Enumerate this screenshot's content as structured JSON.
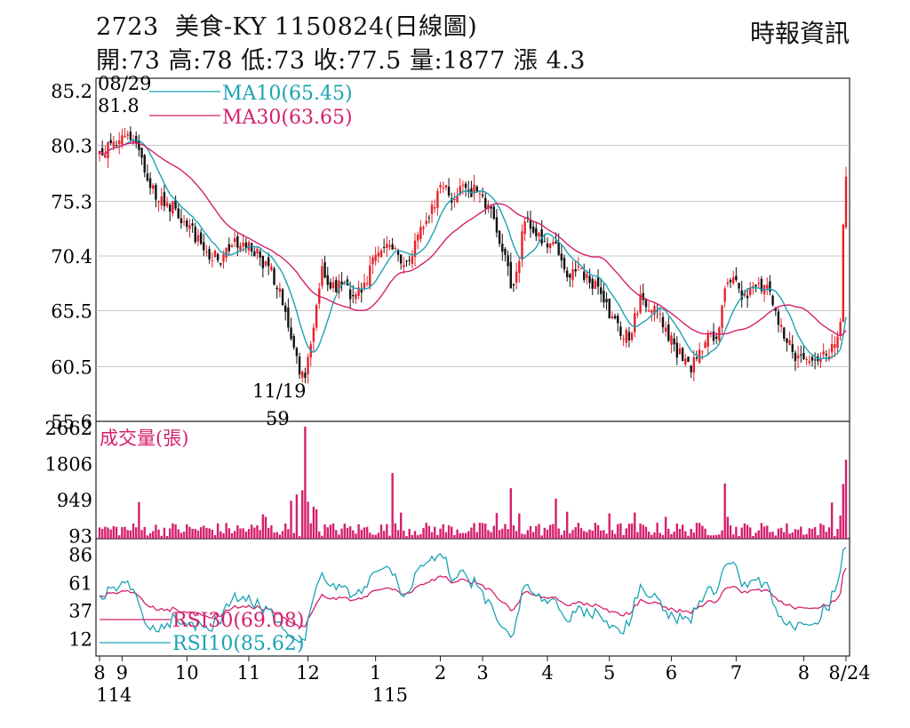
{
  "header": {
    "code": "2723",
    "name": "美食-KY",
    "date_label": "1150824(日線圖)",
    "open_label": "開:73",
    "high_label": "高:78",
    "low_label": "低:73",
    "close_label": "收:77.5",
    "volume_label": "量:1877",
    "change_label": "漲 4.3"
  },
  "source": "時報資訊",
  "colors": {
    "up": "#e8202a",
    "down": "#111111",
    "ma10": "#1aa3b5",
    "ma30": "#d4206e",
    "volume": "#d4206e",
    "rsi10": "#1aa3b5",
    "rsi30": "#d4206e",
    "grid": "#bbbbbb"
  },
  "chart_data": [
    {
      "type": "candlestick",
      "ylim": [
        55.6,
        85.2
      ],
      "yticks": [
        "85.2",
        "80.3",
        "75.3",
        "70.4",
        "65.5",
        "60.5",
        "55.6"
      ],
      "legend": {
        "ma10_label": "MA10(65.45)",
        "ma30_label": "MA30(63.65)"
      },
      "annotations": {
        "high_date": "08/29",
        "high_value": "81.8",
        "low_date": "11/19",
        "low_value": "59"
      },
      "close_anchors": [
        {
          "t": 0,
          "v": 79.8
        },
        {
          "t": 4,
          "v": 80.5
        },
        {
          "t": 8,
          "v": 81.2
        },
        {
          "t": 12,
          "v": 80.8
        },
        {
          "t": 15,
          "v": 79.2
        },
        {
          "t": 18,
          "v": 76.5
        },
        {
          "t": 24,
          "v": 75.2
        },
        {
          "t": 30,
          "v": 73.5
        },
        {
          "t": 36,
          "v": 71.5
        },
        {
          "t": 42,
          "v": 70.0
        },
        {
          "t": 48,
          "v": 72.0
        },
        {
          "t": 54,
          "v": 70.8
        },
        {
          "t": 60,
          "v": 69.5
        },
        {
          "t": 64,
          "v": 67.5
        },
        {
          "t": 67,
          "v": 64.0
        },
        {
          "t": 69,
          "v": 62.2
        },
        {
          "t": 71,
          "v": 59.8
        },
        {
          "t": 73,
          "v": 59.5
        },
        {
          "t": 75,
          "v": 62.5
        },
        {
          "t": 77,
          "v": 66.0
        },
        {
          "t": 79,
          "v": 69.5
        },
        {
          "t": 82,
          "v": 67.5
        },
        {
          "t": 86,
          "v": 67.8
        },
        {
          "t": 90,
          "v": 66.8
        },
        {
          "t": 94,
          "v": 68.0
        },
        {
          "t": 98,
          "v": 70.5
        },
        {
          "t": 102,
          "v": 71.5
        },
        {
          "t": 106,
          "v": 70.5
        },
        {
          "t": 110,
          "v": 70.0
        },
        {
          "t": 114,
          "v": 73.0
        },
        {
          "t": 118,
          "v": 75.0
        },
        {
          "t": 122,
          "v": 76.5
        },
        {
          "t": 126,
          "v": 75.5
        },
        {
          "t": 130,
          "v": 76.5
        },
        {
          "t": 134,
          "v": 76.2
        },
        {
          "t": 138,
          "v": 75.0
        },
        {
          "t": 141,
          "v": 72.5
        },
        {
          "t": 144,
          "v": 70.5
        },
        {
          "t": 146,
          "v": 67.5
        },
        {
          "t": 148,
          "v": 69.0
        },
        {
          "t": 151,
          "v": 73.5
        },
        {
          "t": 154,
          "v": 72.5
        },
        {
          "t": 157,
          "v": 71.5
        },
        {
          "t": 160,
          "v": 71.5
        },
        {
          "t": 163,
          "v": 70.5
        },
        {
          "t": 166,
          "v": 68.5
        },
        {
          "t": 170,
          "v": 69.5
        },
        {
          "t": 174,
          "v": 68.0
        },
        {
          "t": 178,
          "v": 67.0
        },
        {
          "t": 182,
          "v": 65.0
        },
        {
          "t": 186,
          "v": 63.0
        },
        {
          "t": 189,
          "v": 63.5
        },
        {
          "t": 192,
          "v": 67.0
        },
        {
          "t": 195,
          "v": 65.5
        },
        {
          "t": 198,
          "v": 65.5
        },
        {
          "t": 201,
          "v": 64.0
        },
        {
          "t": 204,
          "v": 62.5
        },
        {
          "t": 207,
          "v": 61.0
        },
        {
          "t": 210,
          "v": 60.0
        },
        {
          "t": 213,
          "v": 62.0
        },
        {
          "t": 216,
          "v": 63.5
        },
        {
          "t": 219,
          "v": 63.0
        },
        {
          "t": 222,
          "v": 67.5
        },
        {
          "t": 225,
          "v": 68.5
        },
        {
          "t": 228,
          "v": 66.5
        },
        {
          "t": 231,
          "v": 67.5
        },
        {
          "t": 234,
          "v": 68.0
        },
        {
          "t": 237,
          "v": 67.8
        },
        {
          "t": 240,
          "v": 65.5
        },
        {
          "t": 243,
          "v": 63.0
        },
        {
          "t": 246,
          "v": 61.8
        },
        {
          "t": 249,
          "v": 61.5
        },
        {
          "t": 252,
          "v": 61.0
        },
        {
          "t": 255,
          "v": 61.0
        },
        {
          "t": 258,
          "v": 61.5
        },
        {
          "t": 261,
          "v": 62.5
        },
        {
          "t": 263,
          "v": 64.5
        },
        {
          "t": 264,
          "v": 73.2
        },
        {
          "t": 265,
          "v": 77.5
        }
      ],
      "x_ticks": [
        {
          "label": "8",
          "t": 0
        },
        {
          "label": "9",
          "t": 8
        },
        {
          "label": "10",
          "t": 31
        },
        {
          "label": "11",
          "t": 53
        },
        {
          "label": "12",
          "t": 74
        },
        {
          "label": "1",
          "t": 98
        },
        {
          "label": "2",
          "t": 121
        },
        {
          "label": "3",
          "t": 136
        },
        {
          "label": "4",
          "t": 159
        },
        {
          "label": "5",
          "t": 181
        },
        {
          "label": "6",
          "t": 203
        },
        {
          "label": "7",
          "t": 226
        },
        {
          "label": "8",
          "t": 250
        },
        {
          "label": "8/24",
          "t": 265
        }
      ],
      "year_labels": [
        {
          "label": "114",
          "t": 2
        },
        {
          "label": "115",
          "t": 100
        }
      ]
    },
    {
      "type": "bar",
      "title": "成交量(張)",
      "yticks": [
        "2662",
        "1806",
        "949",
        "93"
      ],
      "ylim": [
        0,
        2662
      ],
      "spikes": [
        {
          "t": 14,
          "v": 870
        },
        {
          "t": 58,
          "v": 580
        },
        {
          "t": 59,
          "v": 520
        },
        {
          "t": 68,
          "v": 900
        },
        {
          "t": 70,
          "v": 1050
        },
        {
          "t": 72,
          "v": 1150
        },
        {
          "t": 73,
          "v": 2662
        },
        {
          "t": 74,
          "v": 880
        },
        {
          "t": 76,
          "v": 760
        },
        {
          "t": 77,
          "v": 700
        },
        {
          "t": 104,
          "v": 1560
        },
        {
          "t": 107,
          "v": 620
        },
        {
          "t": 141,
          "v": 610
        },
        {
          "t": 146,
          "v": 1200
        },
        {
          "t": 149,
          "v": 600
        },
        {
          "t": 162,
          "v": 950
        },
        {
          "t": 166,
          "v": 640
        },
        {
          "t": 181,
          "v": 600
        },
        {
          "t": 190,
          "v": 620
        },
        {
          "t": 201,
          "v": 520
        },
        {
          "t": 222,
          "v": 1310
        },
        {
          "t": 223,
          "v": 520
        },
        {
          "t": 260,
          "v": 860
        },
        {
          "t": 263,
          "v": 550
        },
        {
          "t": 264,
          "v": 1300
        },
        {
          "t": 265,
          "v": 1877
        }
      ]
    },
    {
      "type": "line",
      "yticks": [
        "86",
        "61",
        "37",
        "12"
      ],
      "ylim": [
        0,
        95
      ],
      "legend": {
        "rsi30_label": "RSI30(69.08)",
        "rsi10_label": "RSI10(85.62)"
      }
    }
  ]
}
